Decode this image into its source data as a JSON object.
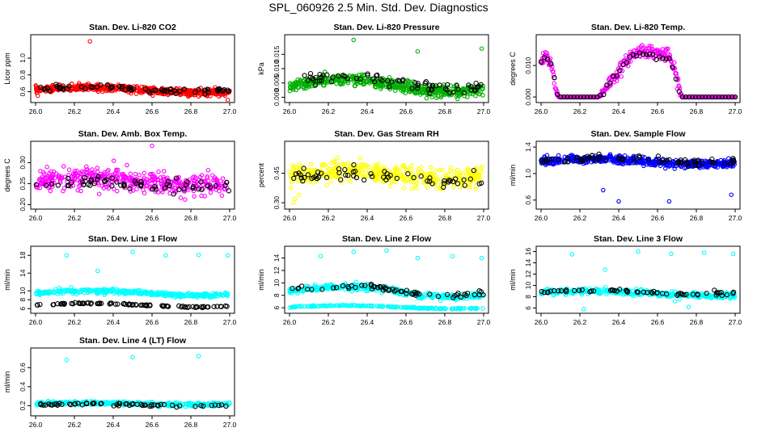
{
  "page": {
    "title": "SPL_060926  2.5 Min. Std. Dev. Diagnostics"
  },
  "chart_data": [
    {
      "type": "scatter",
      "title": "Stan. Dev. Li-820 CO2",
      "ylabel": "Licor ppm",
      "xlabel": "",
      "xlim": [
        26.0,
        27.0
      ],
      "ylim": [
        0.5,
        1.25
      ],
      "xticks": [
        "26.0",
        "26.2",
        "26.4",
        "26.6",
        "26.8",
        "27.0"
      ],
      "yticks": [
        "0.6",
        "0.8",
        "1.0"
      ],
      "ytick_values": [
        0.6,
        0.8,
        1.0
      ],
      "grid": false,
      "series": [
        {
          "color": "#ff0000",
          "base": 0.62,
          "amp": 0.03,
          "noise": 0.04,
          "n": 520,
          "outliers": [
            [
              26.28,
              1.2
            ],
            [
              26.99,
              0.5
            ]
          ]
        },
        {
          "color": "#000000",
          "base": 0.63,
          "amp": 0.02,
          "noise": 0.03,
          "n": 70,
          "outliers": []
        }
      ]
    },
    {
      "type": "scatter",
      "title": "Stan. Dev. Li-820 Pressure",
      "ylabel": "kPa",
      "xlabel": "",
      "xlim": [
        26.0,
        27.0
      ],
      "ylim": [
        -0.001,
        0.021
      ],
      "xticks": [
        "26.0",
        "26.2",
        "26.4",
        "26.6",
        "26.8",
        "27.0"
      ],
      "yticks": [
        "0.000",
        "0.005",
        "0.010",
        "0.015"
      ],
      "ytick_values": [
        0.0,
        0.005,
        0.01,
        0.015
      ],
      "grid": false,
      "series": [
        {
          "color": "#00b000",
          "base": 0.004,
          "amp": 0.002,
          "noise": 0.002,
          "n": 520,
          "outliers": [
            [
              26.33,
              0.02
            ],
            [
              26.66,
              0.016
            ],
            [
              26.99,
              0.017
            ]
          ]
        },
        {
          "color": "#000000",
          "base": 0.005,
          "amp": 0.002,
          "noise": 0.002,
          "n": 70,
          "outliers": []
        }
      ]
    },
    {
      "type": "scatter",
      "title": "Stan. Dev. Li-820 Temp.",
      "ylabel": "degrees C",
      "xlabel": "",
      "xlim": [
        26.0,
        27.0
      ],
      "ylim": [
        -0.001,
        0.019
      ],
      "xticks": [
        "26.0",
        "26.2",
        "26.4",
        "26.6",
        "26.8",
        "27.0"
      ],
      "yticks": [
        "0.000",
        "0.010"
      ],
      "ytick_values": [
        0.0,
        0.01
      ],
      "grid": false,
      "series": [
        {
          "color": "#ff00ff",
          "base": 0.0,
          "amp": 0.0,
          "noise": 0.0,
          "n": 0,
          "outliers": [],
          "curve": [
            [
              26.0,
              0.011
            ],
            [
              26.03,
              0.013
            ],
            [
              26.06,
              0.009
            ],
            [
              26.08,
              0.001
            ],
            [
              26.09,
              0.0
            ],
            [
              26.3,
              0.0
            ],
            [
              26.33,
              0.003
            ],
            [
              26.4,
              0.008
            ],
            [
              26.46,
              0.013
            ],
            [
              26.52,
              0.015
            ],
            [
              26.6,
              0.014
            ],
            [
              26.66,
              0.013
            ],
            [
              26.7,
              0.006
            ],
            [
              26.72,
              0.001
            ],
            [
              26.73,
              0.0
            ],
            [
              27.0,
              0.0
            ]
          ],
          "cn": 400,
          "cnoise": 0.001
        },
        {
          "color": "#000000",
          "base": 0.0,
          "amp": 0.0,
          "noise": 0.0,
          "n": 0,
          "outliers": [],
          "curve": [
            [
              26.0,
              0.011
            ],
            [
              26.03,
              0.012
            ],
            [
              26.06,
              0.009
            ],
            [
              26.08,
              0.001
            ],
            [
              26.09,
              0.0
            ],
            [
              26.3,
              0.0
            ],
            [
              26.33,
              0.003
            ],
            [
              26.4,
              0.008
            ],
            [
              26.46,
              0.013
            ],
            [
              26.52,
              0.014
            ],
            [
              26.6,
              0.013
            ],
            [
              26.66,
              0.012
            ],
            [
              26.7,
              0.005
            ],
            [
              26.72,
              0.0
            ],
            [
              27.0,
              0.0
            ]
          ],
          "cn": 60,
          "cnoise": 0.0006
        }
      ]
    },
    {
      "type": "scatter",
      "title": "Stan. Dev. Amb. Box Temp.",
      "ylabel": "degrees C",
      "xlabel": "",
      "xlim": [
        26.0,
        27.0
      ],
      "ylim": [
        0.195,
        0.345
      ],
      "xticks": [
        "26.0",
        "26.2",
        "26.4",
        "26.6",
        "26.8",
        "27.0"
      ],
      "yticks": [
        "0.20",
        "0.25",
        "0.30"
      ],
      "ytick_values": [
        0.2,
        0.25,
        0.3
      ],
      "grid": false,
      "series": [
        {
          "color": "#ff00ff",
          "base": 0.255,
          "amp": 0.01,
          "noise": 0.025,
          "n": 420,
          "outliers": [
            [
              26.6,
              0.34
            ]
          ]
        },
        {
          "color": "#000000",
          "base": 0.245,
          "amp": 0.005,
          "noise": 0.015,
          "n": 60,
          "outliers": []
        }
      ]
    },
    {
      "type": "scatter",
      "title": "Stan. Dev. Gas Stream RH",
      "ylabel": "percent",
      "xlabel": "",
      "xlim": [
        26.0,
        27.0
      ],
      "ylim": [
        0.28,
        0.6
      ],
      "xticks": [
        "26.0",
        "26.2",
        "26.4",
        "26.6",
        "26.8",
        "27.0"
      ],
      "yticks": [
        "0.30",
        "0.45"
      ],
      "ytick_values": [
        0.3,
        0.45
      ],
      "grid": false,
      "series": [
        {
          "color": "#ffff00",
          "base": 0.44,
          "amp": 0.02,
          "noise": 0.05,
          "n": 420,
          "outliers": [
            [
              26.02,
              0.3
            ],
            [
              26.03,
              0.32
            ],
            [
              26.05,
              0.34
            ]
          ]
        },
        {
          "color": "#000000",
          "base": 0.43,
          "amp": 0.02,
          "noise": 0.04,
          "n": 60,
          "outliers": []
        }
      ]
    },
    {
      "type": "scatter",
      "title": "Stan. Dev. Sample Flow",
      "ylabel": "ml/min",
      "xlabel": "",
      "xlim": [
        26.0,
        27.0
      ],
      "ylim": [
        0.5,
        1.45
      ],
      "xticks": [
        "26.0",
        "26.2",
        "26.4",
        "26.6",
        "26.8",
        "27.0"
      ],
      "yticks": [
        "0.6",
        "1.0",
        "1.4"
      ],
      "ytick_values": [
        0.6,
        1.0,
        1.4
      ],
      "grid": false,
      "series": [
        {
          "color": "#0000ff",
          "base": 1.18,
          "amp": 0.04,
          "noise": 0.06,
          "n": 520,
          "outliers": [
            [
              26.32,
              0.75
            ],
            [
              26.4,
              0.58
            ],
            [
              26.98,
              0.68
            ],
            [
              26.66,
              0.58
            ]
          ]
        },
        {
          "color": "#000000",
          "base": 1.2,
          "amp": 0.03,
          "noise": 0.05,
          "n": 70,
          "outliers": []
        }
      ]
    },
    {
      "type": "scatter",
      "title": "Stan. Dev. Line 1 Flow",
      "ylabel": "ml/min",
      "xlabel": "",
      "xlim": [
        26.0,
        27.0
      ],
      "ylim": [
        5.5,
        19.5
      ],
      "xticks": [
        "26.0",
        "26.2",
        "26.4",
        "26.6",
        "26.8",
        "27.0"
      ],
      "yticks": [
        "6",
        "8",
        "10",
        "14",
        "18"
      ],
      "ytick_values": [
        6,
        8,
        10,
        14,
        18
      ],
      "grid": false,
      "series": [
        {
          "color": "#00ffff",
          "base": 9.5,
          "amp": 0.5,
          "noise": 0.5,
          "n": 380,
          "outliers": [
            [
              26.16,
              18.0
            ],
            [
              26.32,
              14.5
            ],
            [
              26.5,
              18.8
            ],
            [
              26.67,
              18.0
            ],
            [
              26.84,
              18.1
            ],
            [
              26.99,
              18.0
            ]
          ]
        },
        {
          "color": "#000000",
          "base": 6.8,
          "amp": 0.4,
          "noise": 0.15,
          "n": 90,
          "outliers": []
        }
      ]
    },
    {
      "type": "scatter",
      "title": "Stan. Dev. Line 2 Flow",
      "ylabel": "ml/min",
      "xlabel": "",
      "xlim": [
        26.0,
        27.0
      ],
      "ylim": [
        5.5,
        15.5
      ],
      "xticks": [
        "26.0",
        "26.2",
        "26.4",
        "26.6",
        "26.8",
        "27.0"
      ],
      "yticks": [
        "6",
        "8",
        "10",
        "12",
        "14"
      ],
      "ytick_values": [
        6,
        8,
        10,
        12,
        14
      ],
      "grid": false,
      "series": [
        {
          "color": "#00ffff",
          "base": 8.6,
          "amp": 0.8,
          "noise": 0.5,
          "n": 360,
          "outliers": [
            [
              26.16,
              14.3
            ],
            [
              26.33,
              15.0
            ],
            [
              26.5,
              15.2
            ],
            [
              26.66,
              14.0
            ],
            [
              26.84,
              14.3
            ],
            [
              26.99,
              14.0
            ]
          ]
        },
        {
          "color": "#00ffff",
          "base": 6.1,
          "amp": 0.25,
          "noise": 0.08,
          "n": 200,
          "outliers": []
        },
        {
          "color": "#000000",
          "base": 8.8,
          "amp": 0.8,
          "noise": 0.4,
          "n": 60,
          "outliers": []
        }
      ]
    },
    {
      "type": "scatter",
      "title": "Stan. Dev. Line 3 Flow",
      "ylabel": "ml/min",
      "xlabel": "",
      "xlim": [
        26.0,
        27.0
      ],
      "ylim": [
        5.5,
        16.5
      ],
      "xticks": [
        "26.0",
        "26.2",
        "26.4",
        "26.6",
        "26.8",
        "27.0"
      ],
      "yticks": [
        "6",
        "8",
        "10",
        "12",
        "14",
        "16"
      ],
      "ytick_values": [
        6,
        8,
        10,
        12,
        14,
        16
      ],
      "grid": false,
      "series": [
        {
          "color": "#00ffff",
          "base": 8.6,
          "amp": 0.4,
          "noise": 0.5,
          "n": 380,
          "outliers": [
            [
              26.16,
              15.5
            ],
            [
              26.33,
              12.8
            ],
            [
              26.5,
              16.0
            ],
            [
              26.67,
              15.6
            ],
            [
              26.84,
              15.8
            ],
            [
              26.99,
              15.6
            ],
            [
              26.22,
              5.8
            ],
            [
              26.69,
              7.2
            ],
            [
              26.76,
              6.2
            ]
          ]
        },
        {
          "color": "#000000",
          "base": 8.8,
          "amp": 0.3,
          "noise": 0.3,
          "n": 60,
          "outliers": []
        }
      ]
    },
    {
      "type": "scatter",
      "title": "Stan. Dev. Line 4 (LT) Flow",
      "ylabel": "ml/min",
      "xlabel": "",
      "xlim": [
        26.0,
        27.0
      ],
      "ylim": [
        0.12,
        0.78
      ],
      "xticks": [
        "26.0",
        "26.2",
        "26.4",
        "26.6",
        "26.8",
        "27.0"
      ],
      "yticks": [
        "0.2",
        "0.4",
        "0.6"
      ],
      "ytick_values": [
        0.2,
        0.4,
        0.6
      ],
      "grid": false,
      "series": [
        {
          "color": "#00ffff",
          "base": 0.22,
          "amp": 0.01,
          "noise": 0.02,
          "n": 380,
          "outliers": [
            [
              26.16,
              0.68
            ],
            [
              26.5,
              0.71
            ],
            [
              26.84,
              0.72
            ]
          ]
        },
        {
          "color": "#000000",
          "base": 0.21,
          "amp": 0.01,
          "noise": 0.015,
          "n": 60,
          "outliers": []
        }
      ]
    }
  ]
}
